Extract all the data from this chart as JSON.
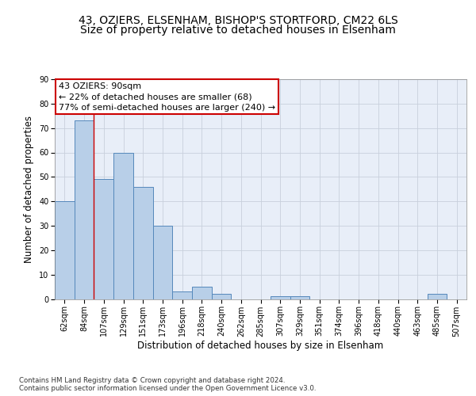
{
  "title1": "43, OZIERS, ELSENHAM, BISHOP'S STORTFORD, CM22 6LS",
  "title2": "Size of property relative to detached houses in Elsenham",
  "xlabel": "Distribution of detached houses by size in Elsenham",
  "ylabel": "Number of detached properties",
  "categories": [
    "62sqm",
    "84sqm",
    "107sqm",
    "129sqm",
    "151sqm",
    "173sqm",
    "196sqm",
    "218sqm",
    "240sqm",
    "262sqm",
    "285sqm",
    "307sqm",
    "329sqm",
    "351sqm",
    "374sqm",
    "396sqm",
    "418sqm",
    "440sqm",
    "463sqm",
    "485sqm",
    "507sqm"
  ],
  "values": [
    40,
    73,
    49,
    60,
    46,
    30,
    3,
    5,
    2,
    0,
    0,
    1,
    1,
    0,
    0,
    0,
    0,
    0,
    0,
    2,
    0
  ],
  "bar_color": "#b8cfe8",
  "bar_edge_color": "#5588bb",
  "vline_x_index": 1.5,
  "vline_color": "#cc0000",
  "annotation_line1": "43 OZIERS: 90sqm",
  "annotation_line2": "← 22% of detached houses are smaller (68)",
  "annotation_line3": "77% of semi-detached houses are larger (240) →",
  "annotation_box_color": "#ffffff",
  "annotation_box_edge_color": "#cc0000",
  "ylim": [
    0,
    90
  ],
  "yticks": [
    0,
    10,
    20,
    30,
    40,
    50,
    60,
    70,
    80,
    90
  ],
  "grid_color": "#c8d0dc",
  "bg_color": "#e8eef8",
  "footer": "Contains HM Land Registry data © Crown copyright and database right 2024.\nContains public sector information licensed under the Open Government Licence v3.0.",
  "title_fontsize": 10,
  "subtitle_fontsize": 10,
  "tick_fontsize": 7,
  "label_fontsize": 8.5,
  "ann_fontsize": 8
}
